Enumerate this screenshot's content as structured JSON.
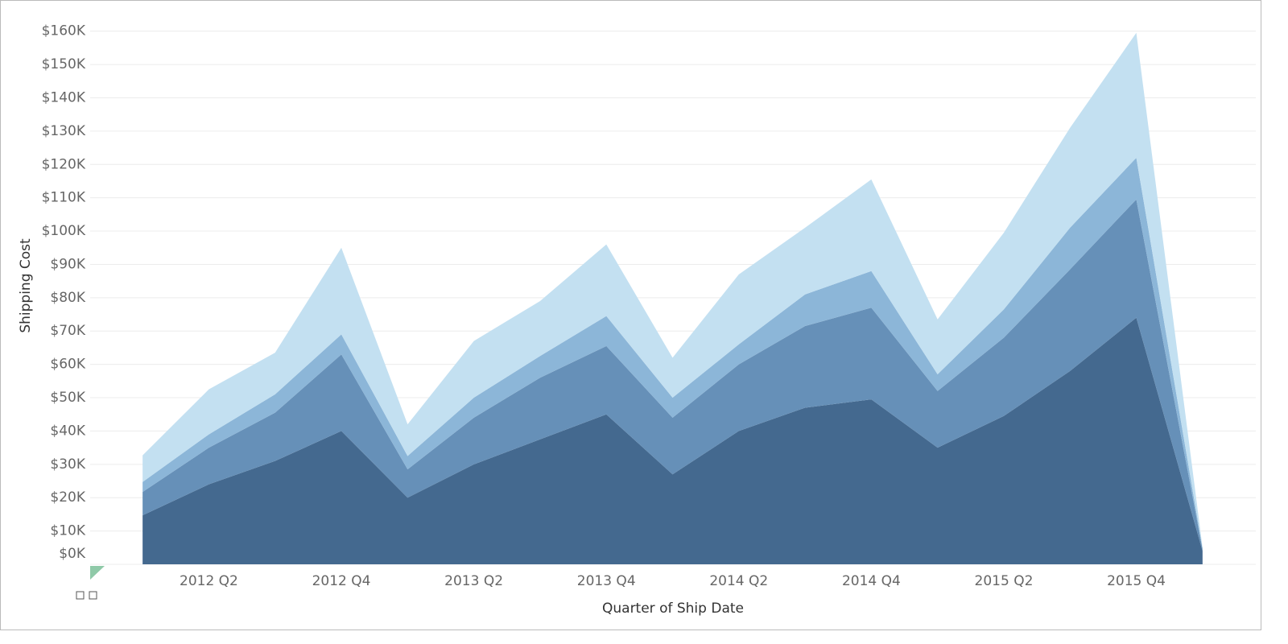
{
  "chart_data": {
    "type": "stacked-area",
    "x_label": "Quarter of Ship Date",
    "y_label": "Shipping Cost",
    "categories": [
      null,
      "2012 Q2",
      null,
      "2012 Q4",
      null,
      "2013 Q2",
      null,
      "2013 Q4",
      null,
      "2014 Q2",
      null,
      "2014 Q4",
      null,
      "2015 Q2",
      null,
      "2015 Q4",
      null
    ],
    "series": [
      {
        "color": "#44698f",
        "values": [
          14700,
          24000,
          31000,
          40000,
          20000,
          30000,
          37500,
          45000,
          27000,
          40000,
          47000,
          49500,
          35000,
          44500,
          58000,
          74000,
          4000
        ]
      },
      {
        "color": "#6690b8",
        "values": [
          7000,
          11000,
          14500,
          23000,
          8500,
          14000,
          18500,
          20500,
          17000,
          20000,
          24500,
          27500,
          17000,
          23500,
          30500,
          35500,
          500
        ]
      },
      {
        "color": "#8cb6d8",
        "values": [
          3000,
          4000,
          5500,
          6000,
          4000,
          6000,
          6500,
          9000,
          6000,
          6000,
          9500,
          11000,
          5000,
          8500,
          12500,
          12500,
          200
        ]
      },
      {
        "color": "#c3e0f1",
        "values": [
          8000,
          13500,
          12500,
          26000,
          9500,
          17000,
          16500,
          21500,
          12000,
          21000,
          20000,
          27500,
          16500,
          23000,
          30000,
          37500,
          300
        ]
      }
    ],
    "ylim": [
      0,
      165000
    ],
    "yticks": [
      {
        "value": 0,
        "label": "$0K"
      },
      {
        "value": 10000,
        "label": "$10K"
      },
      {
        "value": 20000,
        "label": "$20K"
      },
      {
        "value": 30000,
        "label": "$30K"
      },
      {
        "value": 40000,
        "label": "$40K"
      },
      {
        "value": 50000,
        "label": "$50K"
      },
      {
        "value": 60000,
        "label": "$60K"
      },
      {
        "value": 70000,
        "label": "$70K"
      },
      {
        "value": 80000,
        "label": "$80K"
      },
      {
        "value": 90000,
        "label": "$90K"
      },
      {
        "value": 100000,
        "label": "$100K"
      },
      {
        "value": 110000,
        "label": "$110K"
      },
      {
        "value": 120000,
        "label": "$120K"
      },
      {
        "value": 130000,
        "label": "$130K"
      },
      {
        "value": 140000,
        "label": "$140K"
      },
      {
        "value": 150000,
        "label": "$150K"
      },
      {
        "value": 160000,
        "label": "$160K"
      }
    ],
    "grid": true
  }
}
